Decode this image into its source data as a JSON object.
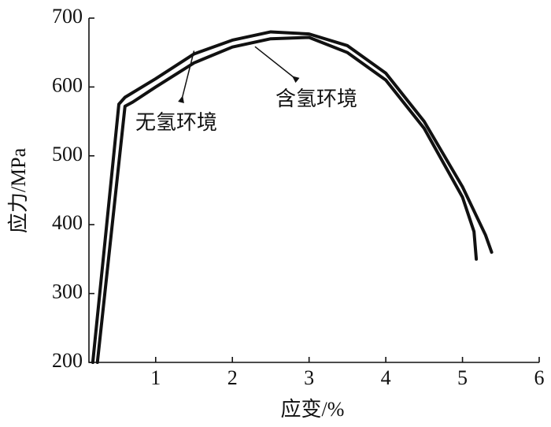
{
  "chart_data": {
    "type": "line",
    "xlabel": "应变/%",
    "ylabel": "应力/MPa",
    "xlim": [
      0.13,
      6
    ],
    "xticks": [
      1,
      2,
      3,
      4,
      5,
      6
    ],
    "ylim": [
      200,
      700
    ],
    "yticks": [
      200,
      300,
      400,
      500,
      600,
      700
    ],
    "series": [
      {
        "name": "无氢环境",
        "color": "#111111",
        "x": [
          0.18,
          0.52,
          0.6,
          1,
          1.5,
          2,
          2.5,
          3,
          3.5,
          4,
          4.5,
          5,
          5.3,
          5.38
        ],
        "values": [
          200,
          575,
          585,
          612,
          648,
          668,
          680,
          677,
          660,
          620,
          550,
          455,
          385,
          360
        ]
      },
      {
        "name": "含氢环境",
        "color": "#111111",
        "x": [
          0.24,
          0.6,
          0.7,
          1,
          1.5,
          2,
          2.5,
          3,
          3.5,
          4,
          4.5,
          5,
          5.15,
          5.18
        ],
        "values": [
          200,
          572,
          578,
          600,
          635,
          658,
          670,
          672,
          650,
          610,
          540,
          440,
          390,
          350
        ]
      }
    ]
  }
}
